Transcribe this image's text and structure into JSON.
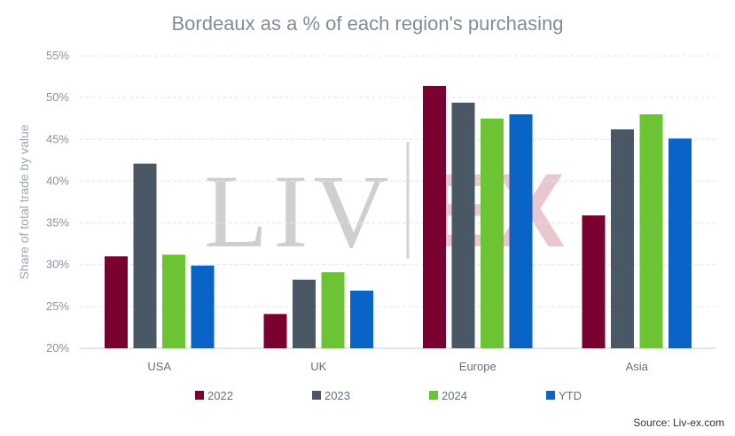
{
  "chart_data": {
    "type": "bar",
    "title": "Bordeaux as a % of each region's purchasing",
    "ylabel": "Share of total trade by value",
    "xlabel": "",
    "categories": [
      "USA",
      "UK",
      "Europe",
      "Asia"
    ],
    "ylim": [
      20,
      55
    ],
    "yticks": [
      20,
      25,
      30,
      35,
      40,
      45,
      50,
      55
    ],
    "ytick_labels": [
      "20%",
      "25%",
      "30%",
      "35%",
      "40%",
      "45%",
      "50%",
      "55%"
    ],
    "grid": true,
    "legend_position": "bottom",
    "series": [
      {
        "name": "2022",
        "color": "#7a0030",
        "values": [
          31.0,
          24.1,
          51.4,
          35.9
        ]
      },
      {
        "name": "2023",
        "color": "#4a5866",
        "values": [
          42.1,
          28.2,
          49.4,
          46.2
        ]
      },
      {
        "name": "2024",
        "color": "#6cc434",
        "values": [
          31.2,
          29.1,
          47.5,
          48.0
        ]
      },
      {
        "name": "YTD",
        "color": "#0a63c6",
        "values": [
          29.9,
          26.9,
          48.0,
          45.1
        ]
      }
    ],
    "watermark": {
      "left": "LIV",
      "right": "EX"
    },
    "source": "Source: Liv-ex.com"
  }
}
